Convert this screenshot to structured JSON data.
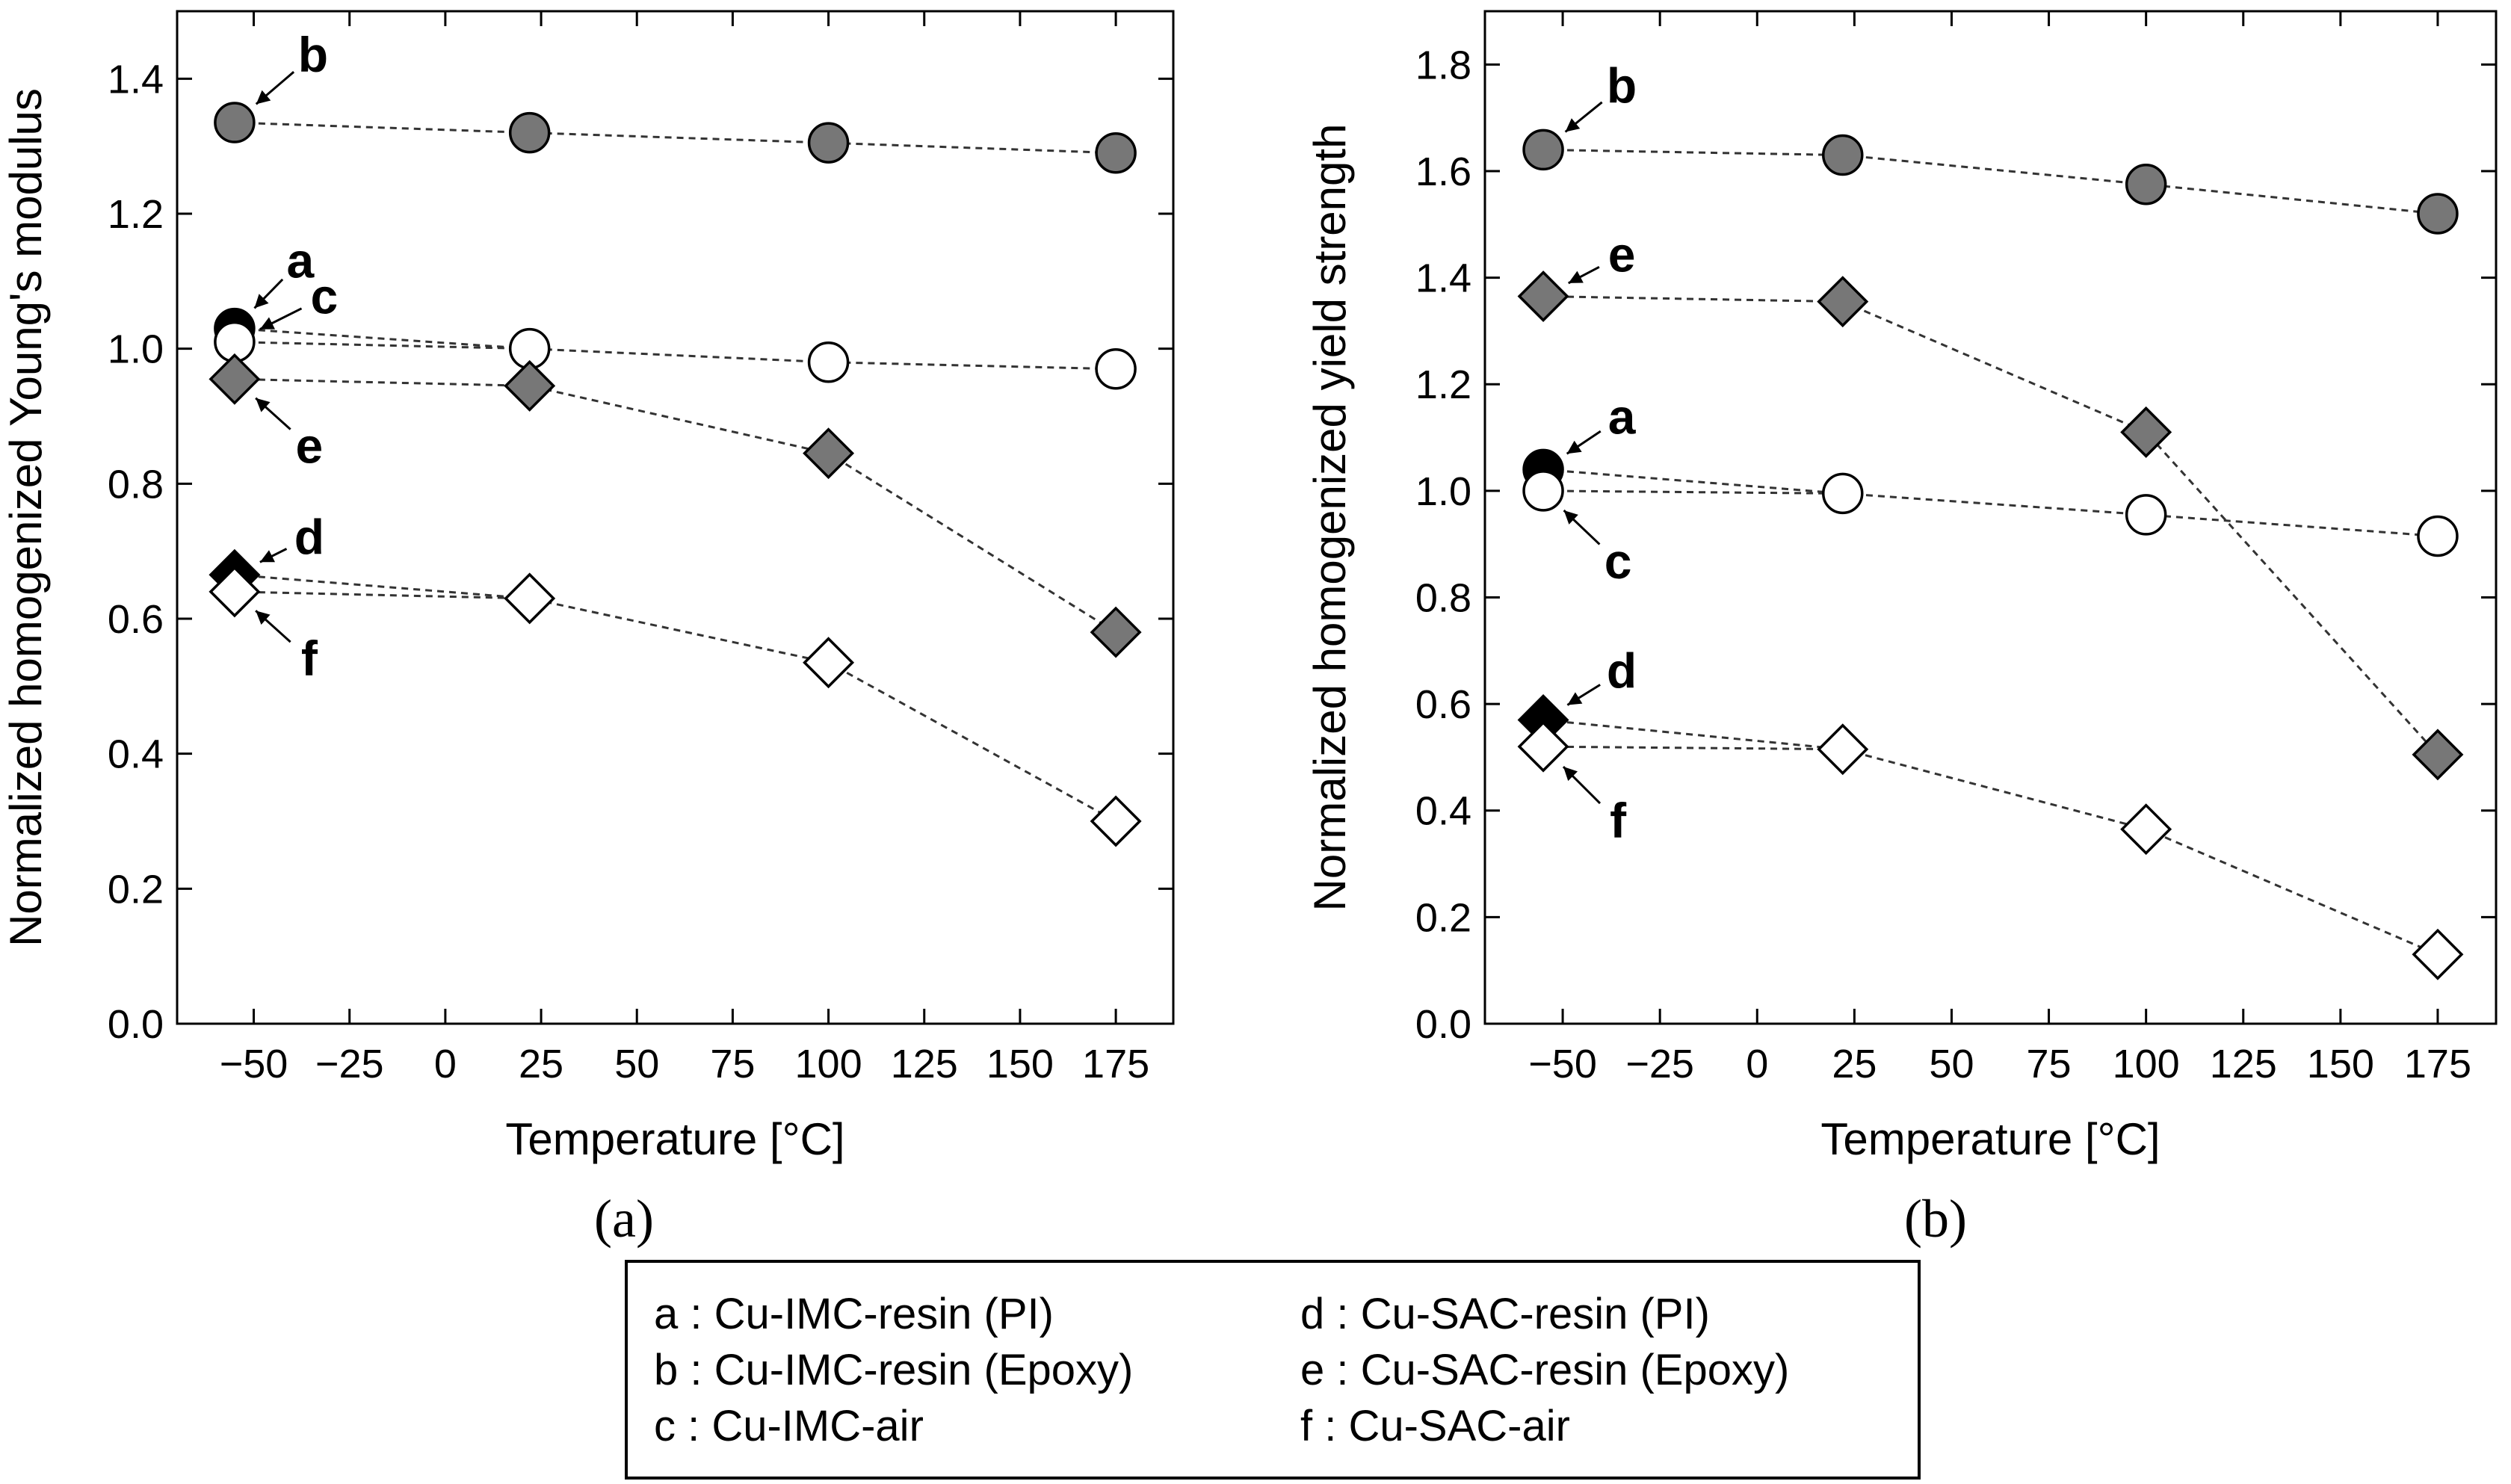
{
  "chart_data": [
    {
      "type": "scatter",
      "panel_label": "(a)",
      "xlabel": "Temperature [°C]",
      "ylabel": "Normalized homogenized Young's modulus",
      "xlim": [
        -70,
        190
      ],
      "ylim": [
        0.0,
        1.5
      ],
      "xticks": [
        -50,
        -25,
        0,
        25,
        50,
        75,
        100,
        125,
        150,
        175
      ],
      "xtick_labels": [
        "−50",
        "−25",
        "0",
        "25",
        "50",
        "75",
        "100",
        "125",
        "150",
        "175"
      ],
      "yticks": [
        0.0,
        0.2,
        0.4,
        0.6,
        0.8,
        1.0,
        1.2,
        1.4
      ],
      "ytick_labels": [
        "0.0",
        "0.2",
        "0.4",
        "0.6",
        "0.8",
        "1.0",
        "1.2",
        "1.4"
      ],
      "series": [
        {
          "key": "a",
          "name": "Cu-IMC-resin (PI)",
          "marker": "circle",
          "fill": "black",
          "x": [
            -55
          ],
          "values": [
            1.03
          ]
        },
        {
          "key": "b",
          "name": "Cu-IMC-resin (Epoxy)",
          "marker": "circle",
          "fill": "gray",
          "x": [
            -55,
            22,
            100,
            175
          ],
          "values": [
            1.335,
            1.32,
            1.305,
            1.29
          ]
        },
        {
          "key": "c",
          "name": "Cu-IMC-air",
          "marker": "circle",
          "fill": "white",
          "x": [
            -55,
            22,
            100,
            175
          ],
          "values": [
            1.01,
            1.0,
            0.98,
            0.97
          ]
        },
        {
          "key": "d",
          "name": "Cu-SAC-resin (PI)",
          "marker": "diamond",
          "fill": "black",
          "x": [
            -55
          ],
          "values": [
            0.665
          ]
        },
        {
          "key": "e",
          "name": "Cu-SAC-resin (Epoxy)",
          "marker": "diamond",
          "fill": "gray",
          "x": [
            -55,
            22,
            100,
            175
          ],
          "values": [
            0.955,
            0.945,
            0.845,
            0.58
          ]
        },
        {
          "key": "f",
          "name": "Cu-SAC-air",
          "marker": "diamond",
          "fill": "white",
          "x": [
            -55,
            22,
            100,
            175
          ],
          "values": [
            0.64,
            0.63,
            0.535,
            0.3
          ]
        }
      ],
      "extra_lines": [
        {
          "from_series": "a",
          "x": [
            -55,
            22
          ],
          "values": [
            1.03,
            1.0
          ]
        },
        {
          "from_series": "d",
          "x": [
            -55,
            22
          ],
          "values": [
            0.665,
            0.63
          ]
        }
      ],
      "annotations": [
        {
          "text": "b",
          "series": "b",
          "point": 0
        },
        {
          "text": "a",
          "series": "a",
          "point": 0
        },
        {
          "text": "c",
          "series": "c",
          "point": 0
        },
        {
          "text": "e",
          "series": "e",
          "point": 0
        },
        {
          "text": "d",
          "series": "d",
          "point": 0
        },
        {
          "text": "f",
          "series": "f",
          "point": 0
        }
      ]
    },
    {
      "type": "scatter",
      "panel_label": "(b)",
      "xlabel": "Temperature [°C]",
      "ylabel": "Normalized homogenized yield strength",
      "xlim": [
        -70,
        190
      ],
      "ylim": [
        0.0,
        1.9
      ],
      "xticks": [
        -50,
        -25,
        0,
        25,
        50,
        75,
        100,
        125,
        150,
        175
      ],
      "xtick_labels": [
        "−50",
        "−25",
        "0",
        "25",
        "50",
        "75",
        "100",
        "125",
        "150",
        "175"
      ],
      "yticks": [
        0.0,
        0.2,
        0.4,
        0.6,
        0.8,
        1.0,
        1.2,
        1.4,
        1.6,
        1.8
      ],
      "ytick_labels": [
        "0.0",
        "0.2",
        "0.4",
        "0.6",
        "0.8",
        "1.0",
        "1.2",
        "1.4",
        "1.6",
        "1.8"
      ],
      "series": [
        {
          "key": "a",
          "name": "Cu-IMC-resin (PI)",
          "marker": "circle",
          "fill": "black",
          "x": [
            -55
          ],
          "values": [
            1.04
          ]
        },
        {
          "key": "b",
          "name": "Cu-IMC-resin (Epoxy)",
          "marker": "circle",
          "fill": "gray",
          "x": [
            -55,
            22,
            100,
            175
          ],
          "values": [
            1.64,
            1.63,
            1.575,
            1.52
          ]
        },
        {
          "key": "c",
          "name": "Cu-IMC-air",
          "marker": "circle",
          "fill": "white",
          "x": [
            -55,
            22,
            100,
            175
          ],
          "values": [
            1.0,
            0.995,
            0.955,
            0.915
          ]
        },
        {
          "key": "d",
          "name": "Cu-SAC-resin (PI)",
          "marker": "diamond",
          "fill": "black",
          "x": [
            -55
          ],
          "values": [
            0.57
          ]
        },
        {
          "key": "e",
          "name": "Cu-SAC-resin (Epoxy)",
          "marker": "diamond",
          "fill": "gray",
          "x": [
            -55,
            22,
            100,
            175
          ],
          "values": [
            1.365,
            1.355,
            1.11,
            0.505
          ]
        },
        {
          "key": "f",
          "name": "Cu-SAC-air",
          "marker": "diamond",
          "fill": "white",
          "x": [
            -55,
            22,
            100,
            175
          ],
          "values": [
            0.52,
            0.515,
            0.365,
            0.13
          ]
        }
      ],
      "extra_lines": [
        {
          "from_series": "a",
          "x": [
            -55,
            22
          ],
          "values": [
            1.04,
            0.995
          ]
        },
        {
          "from_series": "d",
          "x": [
            -55,
            22
          ],
          "values": [
            0.57,
            0.515
          ]
        }
      ],
      "annotations": [
        {
          "text": "b",
          "series": "b",
          "point": 0
        },
        {
          "text": "e",
          "series": "e",
          "point": 0
        },
        {
          "text": "a",
          "series": "a",
          "point": 0
        },
        {
          "text": "c",
          "series": "c",
          "point": 0
        },
        {
          "text": "d",
          "series": "d",
          "point": 0
        },
        {
          "text": "f",
          "series": "f",
          "point": 0
        }
      ]
    }
  ],
  "legend": {
    "items": [
      {
        "key": "a",
        "sep": ":",
        "label": "Cu-IMC-resin (PI)"
      },
      {
        "key": "d",
        "sep": ":",
        "label": "Cu-SAC-resin (PI)"
      },
      {
        "key": "b",
        "sep": ":",
        "label": "Cu-IMC-resin (Epoxy)"
      },
      {
        "key": "e",
        "sep": ":",
        "label": "Cu-SAC-resin (Epoxy)"
      },
      {
        "key": "c",
        "sep": ":",
        "label": "Cu-IMC-air"
      },
      {
        "key": "f",
        "sep": ":",
        "label": "Cu-SAC-air"
      }
    ]
  },
  "colors": {
    "gray_fill": "#777777",
    "black_fill": "#000000",
    "white_fill": "#ffffff",
    "stroke": "#000000",
    "dashed_line": "#333333"
  }
}
